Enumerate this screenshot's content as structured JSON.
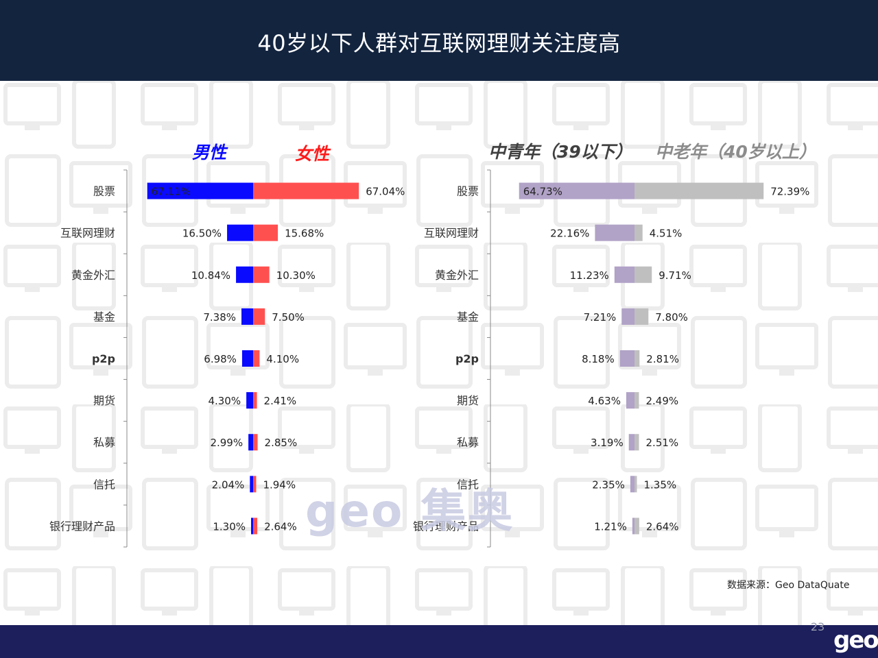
{
  "header": {
    "title": "40岁以下人群对互联网理财关注度高"
  },
  "source": "数据来源：Geo  DataQuate",
  "page_number": "23",
  "footer_logo": "geo",
  "watermark": "geo 集奥",
  "colors": {
    "header_bg": "#13243f",
    "footer_bg": "#1c1f5c",
    "male": "#0a0aff",
    "female": "#ff5050",
    "young": "#b1a2c7",
    "old": "#bfbfbf"
  },
  "chart_data": [
    {
      "type": "bar",
      "orientation": "diverging-horizontal",
      "categories": [
        "股票",
        "互联网理财",
        "黄金外汇",
        "基金",
        "p2p",
        "期货",
        "私募",
        "信托",
        "银行理财产品"
      ],
      "series": [
        {
          "name": "男性",
          "values": [
            67.11,
            16.5,
            10.84,
            7.38,
            6.98,
            4.3,
            2.99,
            2.04,
            1.3
          ],
          "labels": [
            "67.11%",
            "16.50%",
            "10.84%",
            "7.38%",
            "6.98%",
            "4.30%",
            "2.99%",
            "2.04%",
            "1.30%"
          ],
          "color": "#0a0aff"
        },
        {
          "name": "女性",
          "values": [
            67.04,
            15.68,
            10.3,
            7.5,
            4.1,
            2.41,
            2.85,
            1.94,
            2.64
          ],
          "labels": [
            "67.04%",
            "15.68%",
            "10.30%",
            "7.50%",
            "4.10%",
            "2.41%",
            "2.85%",
            "1.94%",
            "2.64%"
          ],
          "color": "#ff5050"
        }
      ],
      "legend": [
        "男性",
        "女性"
      ]
    },
    {
      "type": "bar",
      "orientation": "diverging-horizontal",
      "categories": [
        "股票",
        "互联网理财",
        "黄金外汇",
        "基金",
        "p2p",
        "期货",
        "私募",
        "信托",
        "银行理财产品"
      ],
      "series": [
        {
          "name": "中青年（39以下）",
          "values": [
            64.73,
            22.16,
            11.23,
            7.21,
            8.18,
            4.63,
            3.19,
            2.35,
            1.21
          ],
          "labels": [
            "64.73%",
            "22.16%",
            "11.23%",
            "7.21%",
            "8.18%",
            "4.63%",
            "3.19%",
            "2.35%",
            "1.21%"
          ],
          "color": "#b1a2c7"
        },
        {
          "name": "中老年（40岁以上）",
          "values": [
            72.39,
            4.51,
            9.71,
            7.8,
            2.81,
            2.49,
            2.51,
            1.35,
            2.64
          ],
          "labels": [
            "72.39%",
            "4.51%",
            "9.71%",
            "7.80%",
            "2.81%",
            "2.49%",
            "2.51%",
            "1.35%",
            "2.64%"
          ],
          "color": "#bfbfbf"
        }
      ],
      "legend": [
        "中青年（39以下）",
        "中老年（40岁以上）"
      ]
    }
  ]
}
